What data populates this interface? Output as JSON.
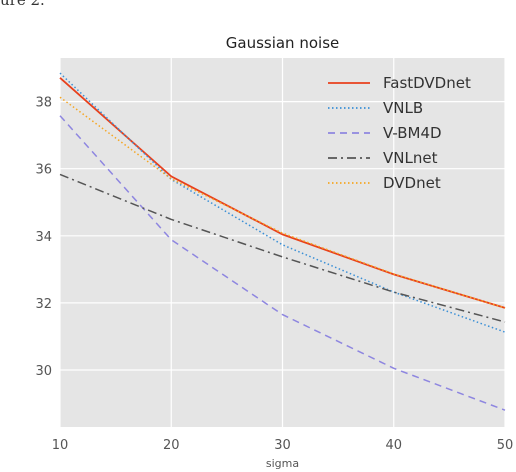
{
  "page": {
    "top_caption": "ure 2."
  },
  "chart_data": {
    "type": "line",
    "title": "Gaussian noise",
    "xlabel": "sigma",
    "ylabel": "",
    "xlim": [
      10,
      50
    ],
    "ylim": [
      28.3,
      39.3
    ],
    "x_ticks": [
      10,
      20,
      30,
      40,
      50
    ],
    "y_ticks": [
      30,
      32,
      34,
      36,
      38
    ],
    "grid": true,
    "background": "#e5e5e5",
    "legend_position": "top-right",
    "series": [
      {
        "name": "FastDVDnet",
        "color": "#e8401c",
        "dash": "solid",
        "x": [
          10,
          20,
          30,
          40,
          50
        ],
        "y": [
          38.71,
          35.77,
          34.04,
          32.85,
          31.85
        ]
      },
      {
        "name": "VNLB",
        "color": "#3a8fd6",
        "dash": "dotted",
        "x": [
          10,
          20,
          30,
          40,
          50
        ],
        "y": [
          38.85,
          35.68,
          33.73,
          32.32,
          31.13
        ]
      },
      {
        "name": "V-BM4D",
        "color": "#8e86e0",
        "dash": "dashed",
        "x": [
          10,
          20,
          30,
          40,
          50
        ],
        "y": [
          37.58,
          33.88,
          31.65,
          30.05,
          28.8
        ]
      },
      {
        "name": "VNLnet",
        "color": "#555555",
        "dash": "dashdot",
        "x": [
          10,
          20,
          30,
          40,
          50
        ],
        "y": [
          35.83,
          34.49,
          33.37,
          32.32,
          31.43
        ]
      },
      {
        "name": "DVDnet",
        "color": "#f5a623",
        "dash": "dotted",
        "x": [
          10,
          20,
          30,
          40,
          50
        ],
        "y": [
          38.13,
          35.7,
          34.08,
          32.86,
          31.85
        ]
      }
    ]
  }
}
